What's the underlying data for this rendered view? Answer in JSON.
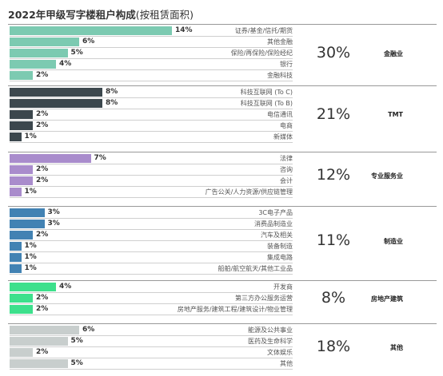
{
  "title": "2022年甲级写字楼租户构成",
  "subtitle": "(按租赁面积)",
  "chart_data": {
    "type": "bar",
    "orientation": "horizontal",
    "unit": "%",
    "groups": [
      {
        "name": "金融业",
        "share": "30%",
        "color": "#7ccab1",
        "items": [
          {
            "label": "证券/基金/信托/期货",
            "value": 14
          },
          {
            "label": "其他金融",
            "value": 6
          },
          {
            "label": "保险/再保险/保险经纪",
            "value": 5
          },
          {
            "label": "银行",
            "value": 4
          },
          {
            "label": "金融科技",
            "value": 2
          }
        ]
      },
      {
        "name": "TMT",
        "share": "21%",
        "color": "#3c474d",
        "items": [
          {
            "label": "科技互联网 (To C)",
            "value": 8
          },
          {
            "label": "科技互联网 (To B)",
            "value": 8
          },
          {
            "label": "电信通讯",
            "value": 2
          },
          {
            "label": "电商",
            "value": 2
          },
          {
            "label": "新媒体",
            "value": 1
          }
        ]
      },
      {
        "name": "专业服务业",
        "share": "12%",
        "color": "#a98ccc",
        "items": [
          {
            "label": "法律",
            "value": 7
          },
          {
            "label": "咨询",
            "value": 2
          },
          {
            "label": "会计",
            "value": 2
          },
          {
            "label": "广告公关/人力资源/供应链管理",
            "value": 1
          }
        ]
      },
      {
        "name": "制造业",
        "share": "11%",
        "color": "#4282b3",
        "items": [
          {
            "label": "3C电子产品",
            "value": 3
          },
          {
            "label": "消费品制造业",
            "value": 3
          },
          {
            "label": "汽车及相关",
            "value": 2
          },
          {
            "label": "装备制造",
            "value": 1
          },
          {
            "label": "集成电路",
            "value": 1
          },
          {
            "label": "船舶/航空航天/其他工业品",
            "value": 1
          }
        ]
      },
      {
        "name": "房地产建筑",
        "share": "8%",
        "color": "#3de08c",
        "items": [
          {
            "label": "开发商",
            "value": 4
          },
          {
            "label": "第三方办公服务运营",
            "value": 2
          },
          {
            "label": "房地产服务/建筑工程/建筑设计/物业管理",
            "value": 2
          }
        ]
      },
      {
        "name": "其他",
        "share": "18%",
        "color": "#c8cecd",
        "items": [
          {
            "label": "能源及公共事业",
            "value": 6
          },
          {
            "label": "医药及生命科学",
            "value": 5
          },
          {
            "label": "文体娱乐",
            "value": 2
          },
          {
            "label": "其他",
            "value": 5
          }
        ]
      }
    ]
  }
}
